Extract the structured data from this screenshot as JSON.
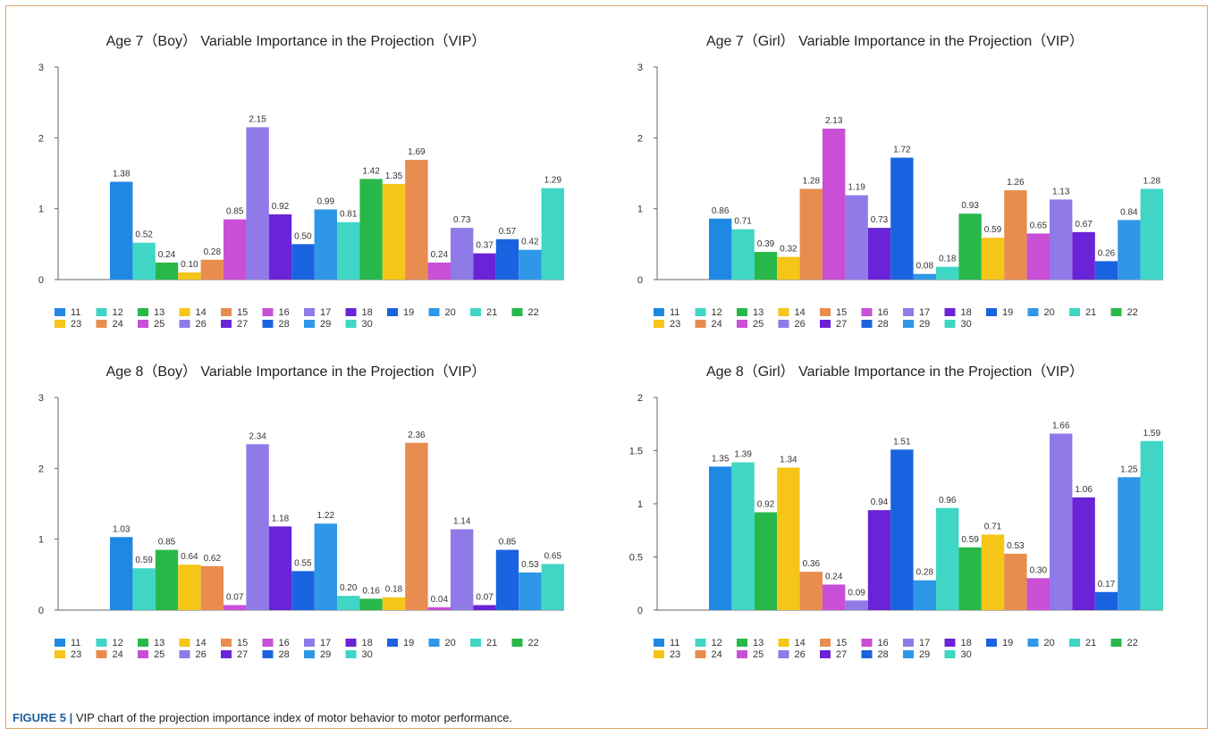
{
  "figure": {
    "caption_label": "FIGURE 5 |",
    "caption_text": " VIP chart of the projection importance index of motor behavior to motor performance."
  },
  "palette": [
    "#1f88e5",
    "#3fd6c6",
    "#28b84a",
    "#f5c518",
    "#e88c4f",
    "#c84fd6",
    "#8f7ae8",
    "#6a23d6",
    "#1a63e0",
    "#2e97e8",
    "#3fd6c6",
    "#28b84a",
    "#f5c518",
    "#e88c4f",
    "#c84fd6",
    "#8f7ae8",
    "#6a23d6",
    "#1a63e0",
    "#2e97e8",
    "#3fd6c6"
  ],
  "chart_data": [
    {
      "type": "bar",
      "title": "Age 7（Boy） Variable Importance in the Projection（VIP）",
      "categories": [
        "11",
        "12",
        "13",
        "14",
        "15",
        "16",
        "17",
        "18",
        "19",
        "20",
        "21",
        "22",
        "23",
        "24",
        "25",
        "26",
        "27",
        "28",
        "29",
        "30"
      ],
      "values": [
        1.38,
        0.52,
        0.24,
        0.1,
        0.28,
        0.85,
        2.15,
        0.92,
        0.5,
        0.99,
        0.81,
        1.42,
        1.35,
        1.69,
        0.24,
        0.73,
        0.37,
        0.57,
        0.42,
        1.29
      ],
      "data_labels": [
        "1.38",
        "0.52",
        "0.24",
        "0.10",
        "0.28",
        "0.85",
        "2.15",
        "0.92",
        "0.50",
        "0.99",
        "0.81",
        "1.42",
        "1.35",
        "1.69",
        "0.24",
        "0.73",
        "0.37",
        "0.57",
        "0.42",
        "1.29"
      ],
      "ylim": [
        0,
        3
      ],
      "yticks": [
        "0",
        "1",
        "2",
        "3"
      ],
      "ytick_values": [
        0,
        1,
        2,
        3
      ],
      "legend": [
        "11",
        "12",
        "13",
        "14",
        "15",
        "16",
        "17",
        "18",
        "19",
        "20",
        "21",
        "22",
        "23",
        "24",
        "25",
        "26",
        "27",
        "28",
        "29",
        "30"
      ],
      "legend_position": "bottom"
    },
    {
      "type": "bar",
      "title": "Age 7（Girl） Variable Importance in the Projection（VIP）",
      "categories": [
        "11",
        "12",
        "13",
        "14",
        "15",
        "16",
        "17",
        "18",
        "19",
        "20",
        "21",
        "22",
        "23",
        "24",
        "25",
        "26",
        "27",
        "28",
        "29",
        "30"
      ],
      "values": [
        0.86,
        0.71,
        0.39,
        0.32,
        1.28,
        2.13,
        1.19,
        0.73,
        1.72,
        0.08,
        0.18,
        0.93,
        0.59,
        1.26,
        0.65,
        1.13,
        0.67,
        0.26,
        0.84,
        1.28
      ],
      "data_labels": [
        "0.86",
        "0.71",
        "0.39",
        "0.32",
        "1.28",
        "2.13",
        "1.19",
        "0.73",
        "1.72",
        "0.08",
        "0.18",
        "0.93",
        "0.59",
        "1.26",
        "0.65",
        "1.13",
        "0.67",
        "0.26",
        "0.84",
        "1.28"
      ],
      "ylim": [
        0,
        3
      ],
      "yticks": [
        "0",
        "1",
        "2",
        "3"
      ],
      "ytick_values": [
        0,
        1,
        2,
        3
      ],
      "legend": [
        "11",
        "12",
        "13",
        "14",
        "15",
        "16",
        "17",
        "18",
        "19",
        "20",
        "21",
        "22",
        "23",
        "24",
        "25",
        "26",
        "27",
        "28",
        "29",
        "30"
      ],
      "legend_position": "bottom"
    },
    {
      "type": "bar",
      "title": "Age 8（Boy） Variable Importance in the Projection（VIP）",
      "categories": [
        "11",
        "12",
        "13",
        "14",
        "15",
        "16",
        "17",
        "18",
        "19",
        "20",
        "21",
        "22",
        "23",
        "24",
        "25",
        "26",
        "27",
        "28",
        "29",
        "30"
      ],
      "values": [
        1.03,
        0.59,
        0.85,
        0.64,
        0.62,
        0.07,
        2.34,
        1.18,
        0.55,
        1.22,
        0.2,
        0.16,
        0.18,
        2.36,
        0.04,
        1.14,
        0.07,
        0.85,
        0.53,
        0.65
      ],
      "data_labels": [
        "1.03",
        "0.59",
        "0.85",
        "0.64",
        "0.62",
        "0.07",
        "2.34",
        "1.18",
        "0.55",
        "1.22",
        "0.20",
        "0.16",
        "0.18",
        "2.36",
        "0.04",
        "1.14",
        "0.07",
        "0.85",
        "0.53",
        "0.65"
      ],
      "ylim": [
        0,
        3
      ],
      "yticks": [
        "0",
        "1",
        "2",
        "3"
      ],
      "ytick_values": [
        0,
        1,
        2,
        3
      ],
      "legend": [
        "11",
        "12",
        "13",
        "14",
        "15",
        "16",
        "17",
        "18",
        "19",
        "20",
        "21",
        "22",
        "23",
        "24",
        "25",
        "26",
        "27",
        "28",
        "29",
        "30"
      ],
      "legend_position": "bottom"
    },
    {
      "type": "bar",
      "title": "Age 8（Girl） Variable Importance in the Projection（VIP）",
      "categories": [
        "11",
        "12",
        "13",
        "14",
        "15",
        "16",
        "17",
        "18",
        "19",
        "20",
        "21",
        "22",
        "23",
        "24",
        "25",
        "26",
        "27",
        "28",
        "29",
        "30"
      ],
      "values": [
        1.35,
        1.39,
        0.92,
        1.34,
        0.36,
        0.24,
        0.09,
        0.94,
        1.51,
        0.28,
        0.96,
        0.59,
        0.71,
        0.53,
        0.3,
        1.66,
        1.06,
        0.17,
        1.25,
        1.59
      ],
      "data_labels": [
        "1.35",
        "1.39",
        "0.92",
        "1.34",
        "0.36",
        "0.24",
        "0.09",
        "0.94",
        "1.51",
        "0.28",
        "0.96",
        "0.59",
        "0.71",
        "0.53",
        "0.30",
        "1.66",
        "1.06",
        "0.17",
        "1.25",
        "1.59"
      ],
      "ylim": [
        0,
        2
      ],
      "yticks": [
        "0",
        "0.5",
        "1",
        "1.5",
        "2"
      ],
      "ytick_values": [
        0,
        0.5,
        1,
        1.5,
        2
      ],
      "legend": [
        "11",
        "12",
        "13",
        "14",
        "15",
        "16",
        "17",
        "18",
        "19",
        "20",
        "21",
        "22",
        "23",
        "24",
        "25",
        "26",
        "27",
        "28",
        "29",
        "30"
      ],
      "legend_position": "bottom"
    }
  ]
}
